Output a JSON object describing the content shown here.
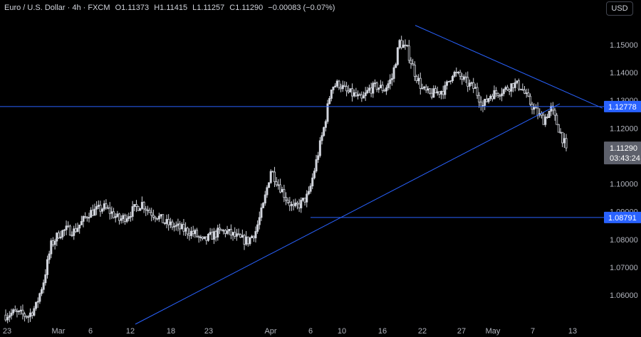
{
  "header": {
    "symbol": "Euro / U.S. Dollar · 4h · FXCM",
    "open_label": "O",
    "open": "1.11373",
    "high_label": "H",
    "high": "1.11415",
    "low_label": "L",
    "low": "1.11257",
    "close_label": "C",
    "close": "1.11290",
    "change": "−0.00083 (−0.07%)",
    "currency_button": "USD"
  },
  "colors": {
    "background": "#000000",
    "candle": "#d1d4dc",
    "trendline": "#2962ff",
    "hline": "#2962ff",
    "tag_blue": "#2962ff",
    "tag_price": "#5d606b"
  },
  "chart_data": {
    "type": "candlestick",
    "y_ticks": [
      "1.15000",
      "1.14000",
      "1.13000",
      "1.12000",
      "1.11000",
      "1.10000",
      "1.09000",
      "1.08000",
      "1.07000",
      "1.06000"
    ],
    "ylim": [
      1.053,
      1.157
    ],
    "x_tick_labels": [
      "23",
      "Mar",
      "6",
      "12",
      "18",
      "23",
      "Apr",
      "6",
      "10",
      "16",
      "22",
      "27",
      "May",
      "7",
      "13"
    ],
    "close_series_approx": [
      1.0528,
      1.0536,
      1.0531,
      1.0525,
      1.056,
      1.065,
      1.078,
      1.082,
      1.0835,
      1.083,
      1.086,
      1.0895,
      1.0905,
      1.0915,
      1.0895,
      1.087,
      1.0885,
      1.091,
      1.093,
      1.09,
      1.0885,
      1.086,
      1.085,
      1.084,
      1.083,
      1.082,
      1.079,
      1.081,
      1.0825,
      1.083,
      1.0815,
      1.08,
      1.0795,
      1.083,
      1.092,
      1.105,
      1.1,
      1.095,
      1.091,
      1.093,
      1.096,
      1.108,
      1.12,
      1.135,
      1.136,
      1.133,
      1.132,
      1.13,
      1.134,
      1.135,
      1.134,
      1.138,
      1.151,
      1.148,
      1.14,
      1.134,
      1.132,
      1.133,
      1.134,
      1.14,
      1.1385,
      1.136,
      1.134,
      1.128,
      1.132,
      1.133,
      1.134,
      1.136,
      1.135,
      1.13,
      1.126,
      1.123,
      1.127,
      1.12,
      1.1129
    ],
    "horizontal_levels": [
      {
        "price": 1.12778,
        "label": "1.12778"
      },
      {
        "price": 1.08791,
        "label": "1.08791"
      }
    ],
    "last_price": {
      "price": 1.1129,
      "label": "1.11290",
      "countdown": "03:43:24"
    },
    "trendlines": [
      {
        "from": {
          "x": "early Mar",
          "y": 1.053
        },
        "to": {
          "x": "May 12",
          "y": 1.128
        }
      },
      {
        "from": {
          "x": "Apr 21",
          "y": 1.157
        },
        "to": {
          "x": "May 13",
          "y": 1.128
        }
      }
    ]
  }
}
